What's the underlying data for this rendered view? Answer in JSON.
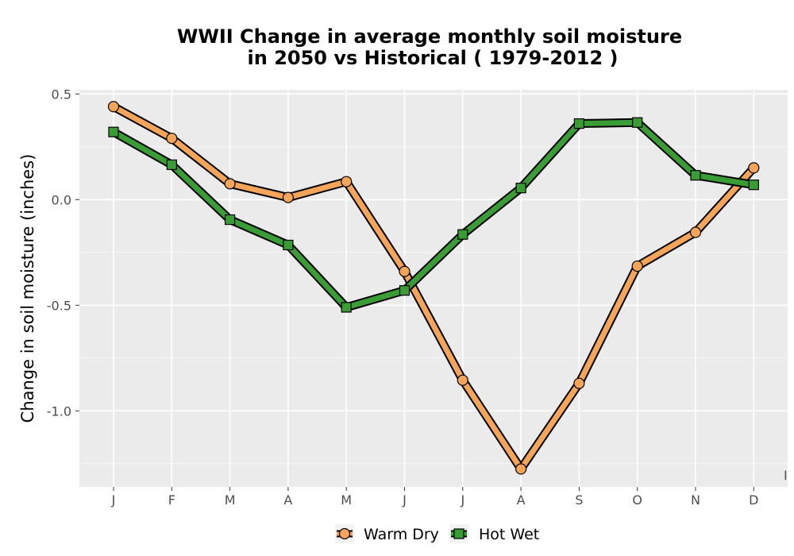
{
  "chart_data": {
    "type": "line",
    "title_line1": "WWII  Change in average monthly soil moisture",
    "title_line2": "in 2050 vs Historical ( 1979-2012 )",
    "xlabel": "",
    "ylabel": "Change in soil moisture (inches)",
    "categories": [
      "J",
      "F",
      "M",
      "A",
      "M",
      "J",
      "J",
      "A",
      "S",
      "O",
      "N",
      "D"
    ],
    "ylim": [
      -1.36,
      0.52
    ],
    "yticks": [
      0.5,
      0.0,
      -0.5,
      -1.0
    ],
    "ytick_labels": [
      "0.5",
      "0.0",
      "-0.5",
      "-1.0"
    ],
    "grid": true,
    "legend_position": "bottom",
    "stray_mark": "I",
    "series": [
      {
        "name": "Warm Dry",
        "marker": "circle",
        "color": "#f5a55a",
        "values": [
          0.44,
          0.29,
          0.075,
          0.01,
          0.085,
          -0.34,
          -0.855,
          -1.275,
          -0.87,
          -0.315,
          -0.155,
          0.15
        ]
      },
      {
        "name": "Hot Wet",
        "marker": "square",
        "color": "#3a9c35",
        "values": [
          0.32,
          0.165,
          -0.095,
          -0.215,
          -0.51,
          -0.43,
          -0.165,
          0.055,
          0.36,
          0.365,
          0.115,
          0.07
        ]
      }
    ]
  }
}
